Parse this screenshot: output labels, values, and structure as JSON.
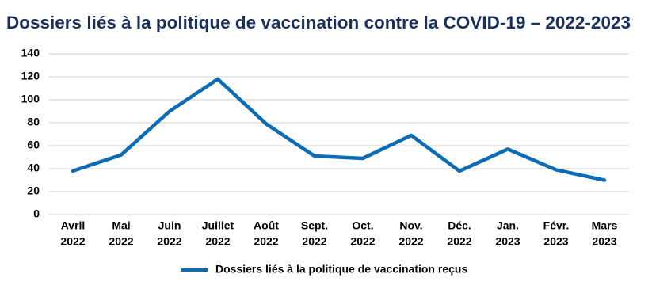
{
  "chart_data": {
    "type": "line",
    "title": "Dossiers liés à la politique de vaccination contre la COVID-19 – 2022-2023",
    "categories": [
      [
        "Avril",
        "2022"
      ],
      [
        "Mai",
        "2022"
      ],
      [
        "Juin",
        "2022"
      ],
      [
        "Juillet",
        "2022"
      ],
      [
        "Août",
        "2022"
      ],
      [
        "Sept.",
        "2022"
      ],
      [
        "Oct.",
        "2022"
      ],
      [
        "Nov.",
        "2022"
      ],
      [
        "Déc.",
        "2022"
      ],
      [
        "Jan.",
        "2023"
      ],
      [
        "Févr.",
        "2023"
      ],
      [
        "Mars",
        "2023"
      ]
    ],
    "series": [
      {
        "name": "Dossiers liés à la politique de vaccination reçus",
        "color": "#0b6bb5",
        "values": [
          38,
          52,
          90,
          118,
          79,
          51,
          49,
          69,
          38,
          57,
          39,
          30
        ]
      }
    ],
    "ylim": [
      0,
      140
    ],
    "yticks": [
      0,
      20,
      40,
      60,
      80,
      100,
      120,
      140
    ],
    "grid": true,
    "legend": "bottom"
  }
}
